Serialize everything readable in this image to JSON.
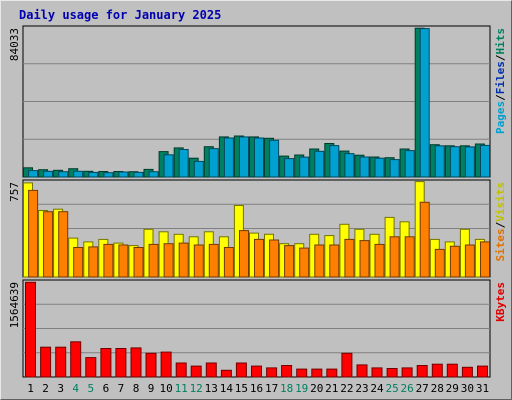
{
  "chart_data": {
    "type": "bar",
    "title": "Daily usage for January 2025",
    "categories": [
      "1",
      "2",
      "3",
      "4",
      "5",
      "6",
      "7",
      "8",
      "9",
      "10",
      "11",
      "12",
      "13",
      "14",
      "15",
      "16",
      "17",
      "18",
      "19",
      "20",
      "21",
      "22",
      "23",
      "24",
      "25",
      "26",
      "27",
      "28",
      "29",
      "30",
      "31"
    ],
    "weekend_days": [
      "4",
      "5",
      "11",
      "12",
      "18",
      "19",
      "25",
      "26"
    ],
    "panels": [
      {
        "max_label": "84033",
        "ylim": [
          0,
          84033
        ],
        "axis_labels": [
          {
            "text": "Pages",
            "color": "#00a0d0"
          },
          {
            "text": "Files",
            "color": "#0030b0"
          },
          {
            "text": "Hits",
            "color": "#008060"
          }
        ],
        "series": [
          {
            "name": "Hits",
            "color": "#008060",
            "values": [
              5200,
              4100,
              3800,
              4700,
              3200,
              3100,
              3100,
              3000,
              4300,
              14300,
              16400,
              10600,
              17100,
              22600,
              23100,
              22600,
              21800,
              11800,
              12400,
              15800,
              18900,
              14600,
              12300,
              11300,
              10900,
              15800,
              83900,
              18200,
              17600,
              17600,
              18600
            ]
          },
          {
            "name": "Pages",
            "color": "#00a0d0",
            "values": [
              3600,
              3200,
              3000,
              3200,
              2600,
              2400,
              2800,
              2600,
              3000,
              12500,
              15500,
              8800,
              16000,
              22000,
              22600,
              22000,
              20700,
              10400,
              11200,
              14500,
              17700,
              13200,
              11300,
              10600,
              9800,
              14900,
              83700,
              17600,
              17100,
              17000,
              17800
            ]
          }
        ]
      },
      {
        "max_label": "757",
        "ylim": [
          0,
          757
        ],
        "axis_labels": [
          {
            "text": "Sites",
            "color": "#e07000"
          },
          {
            "text": "Visits",
            "color": "#c0c000"
          }
        ],
        "series": [
          {
            "name": "Visits",
            "color": "#ffff00",
            "values": [
              750,
              530,
              540,
              310,
              280,
              300,
              270,
              250,
              380,
              360,
              340,
              320,
              360,
              320,
              570,
              350,
              340,
              265,
              265,
              340,
              330,
              420,
              380,
              340,
              475,
              440,
              760,
              300,
              280,
              380,
              300
            ]
          },
          {
            "name": "Sites",
            "color": "#ff8000",
            "values": [
              690,
              520,
              520,
              235,
              240,
              260,
              255,
              235,
              260,
              265,
              270,
              255,
              260,
              235,
              370,
              300,
              295,
              250,
              230,
              255,
              255,
              300,
              290,
              260,
              320,
              320,
              595,
              220,
              245,
              255,
              280
            ]
          }
        ]
      },
      {
        "max_label": "1564639",
        "ylim": [
          0,
          1564639
        ],
        "axis_labels": [
          {
            "text": "KBytes",
            "color": "#e00000"
          }
        ],
        "series": [
          {
            "name": "KBytes",
            "color": "#ff0000",
            "values": [
              1560000,
              490000,
              490000,
              580000,
              320000,
              470000,
              470000,
              480000,
              390000,
              410000,
              230000,
              180000,
              230000,
              110000,
              230000,
              180000,
              150000,
              190000,
              130000,
              130000,
              130000,
              390000,
              200000,
              150000,
              140000,
              150000,
              190000,
              210000,
              210000,
              160000,
              180000
            ]
          }
        ]
      }
    ]
  }
}
